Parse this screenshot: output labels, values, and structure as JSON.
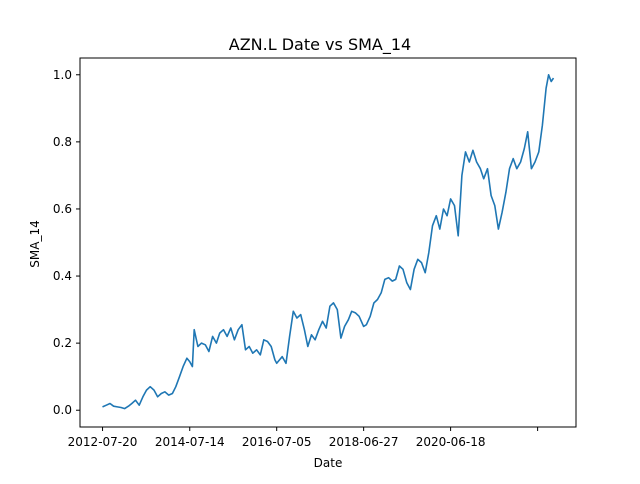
{
  "chart_data": {
    "type": "line",
    "title": "AZN.L Date vs SMA_14",
    "xlabel": "Date",
    "ylabel": "SMA_14",
    "x_tick_labels": [
      "2012-07-20",
      "2014-07-14",
      "2016-07-05",
      "2018-06-27",
      "2020-06-18",
      ""
    ],
    "y_tick_labels": [
      "0.0",
      "0.2",
      "0.4",
      "0.6",
      "0.8",
      "1.0"
    ],
    "ylim": [
      -0.05,
      1.05
    ],
    "grid": false,
    "line_color": "#1f77b4",
    "series": [
      {
        "points": [
          [
            "2012-07-20",
            0.01
          ],
          [
            "2012-08-20",
            0.015
          ],
          [
            "2012-09-20",
            0.02
          ],
          [
            "2012-10-20",
            0.012
          ],
          [
            "2012-11-20",
            0.01
          ],
          [
            "2012-12-20",
            0.008
          ],
          [
            "2013-01-20",
            0.005
          ],
          [
            "2013-02-20",
            0.012
          ],
          [
            "2013-03-20",
            0.02
          ],
          [
            "2013-04-20",
            0.03
          ],
          [
            "2013-05-20",
            0.015
          ],
          [
            "2013-06-20",
            0.04
          ],
          [
            "2013-07-20",
            0.06
          ],
          [
            "2013-08-20",
            0.07
          ],
          [
            "2013-09-20",
            0.06
          ],
          [
            "2013-10-20",
            0.04
          ],
          [
            "2013-11-20",
            0.05
          ],
          [
            "2013-12-20",
            0.055
          ],
          [
            "2014-01-20",
            0.045
          ],
          [
            "2014-02-20",
            0.05
          ],
          [
            "2014-03-20",
            0.07
          ],
          [
            "2014-04-20",
            0.1
          ],
          [
            "2014-05-20",
            0.13
          ],
          [
            "2014-06-20",
            0.155
          ],
          [
            "2014-07-14",
            0.145
          ],
          [
            "2014-08-05",
            0.13
          ],
          [
            "2014-08-20",
            0.24
          ],
          [
            "2014-09-20",
            0.19
          ],
          [
            "2014-10-20",
            0.2
          ],
          [
            "2014-11-20",
            0.195
          ],
          [
            "2014-12-20",
            0.175
          ],
          [
            "2015-01-20",
            0.22
          ],
          [
            "2015-02-20",
            0.2
          ],
          [
            "2015-03-20",
            0.23
          ],
          [
            "2015-04-20",
            0.24
          ],
          [
            "2015-05-20",
            0.22
          ],
          [
            "2015-06-20",
            0.245
          ],
          [
            "2015-07-20",
            0.21
          ],
          [
            "2015-08-20",
            0.24
          ],
          [
            "2015-09-20",
            0.255
          ],
          [
            "2015-10-20",
            0.18
          ],
          [
            "2015-11-20",
            0.19
          ],
          [
            "2015-12-20",
            0.17
          ],
          [
            "2016-01-20",
            0.18
          ],
          [
            "2016-02-20",
            0.165
          ],
          [
            "2016-03-20",
            0.21
          ],
          [
            "2016-04-20",
            0.205
          ],
          [
            "2016-05-20",
            0.19
          ],
          [
            "2016-06-20",
            0.15
          ],
          [
            "2016-07-05",
            0.14
          ],
          [
            "2016-08-20",
            0.16
          ],
          [
            "2016-09-20",
            0.14
          ],
          [
            "2016-10-20",
            0.22
          ],
          [
            "2016-11-20",
            0.295
          ],
          [
            "2016-12-20",
            0.275
          ],
          [
            "2017-01-20",
            0.285
          ],
          [
            "2017-02-20",
            0.24
          ],
          [
            "2017-03-20",
            0.19
          ],
          [
            "2017-04-20",
            0.225
          ],
          [
            "2017-05-20",
            0.21
          ],
          [
            "2017-06-20",
            0.24
          ],
          [
            "2017-07-20",
            0.265
          ],
          [
            "2017-08-20",
            0.245
          ],
          [
            "2017-09-20",
            0.31
          ],
          [
            "2017-10-20",
            0.32
          ],
          [
            "2017-11-20",
            0.3
          ],
          [
            "2017-12-20",
            0.215
          ],
          [
            "2018-01-20",
            0.25
          ],
          [
            "2018-02-20",
            0.27
          ],
          [
            "2018-03-20",
            0.295
          ],
          [
            "2018-04-20",
            0.29
          ],
          [
            "2018-05-20",
            0.28
          ],
          [
            "2018-06-27",
            0.25
          ],
          [
            "2018-07-20",
            0.255
          ],
          [
            "2018-08-20",
            0.28
          ],
          [
            "2018-09-20",
            0.32
          ],
          [
            "2018-10-20",
            0.33
          ],
          [
            "2018-11-20",
            0.35
          ],
          [
            "2018-12-20",
            0.39
          ],
          [
            "2019-01-20",
            0.395
          ],
          [
            "2019-02-20",
            0.385
          ],
          [
            "2019-03-20",
            0.39
          ],
          [
            "2019-04-20",
            0.43
          ],
          [
            "2019-05-20",
            0.42
          ],
          [
            "2019-06-20",
            0.38
          ],
          [
            "2019-07-20",
            0.36
          ],
          [
            "2019-08-20",
            0.42
          ],
          [
            "2019-09-20",
            0.45
          ],
          [
            "2019-10-20",
            0.44
          ],
          [
            "2019-11-20",
            0.41
          ],
          [
            "2019-12-20",
            0.47
          ],
          [
            "2020-01-20",
            0.55
          ],
          [
            "2020-02-20",
            0.58
          ],
          [
            "2020-03-20",
            0.54
          ],
          [
            "2020-04-20",
            0.6
          ],
          [
            "2020-05-20",
            0.58
          ],
          [
            "2020-06-18",
            0.63
          ],
          [
            "2020-07-20",
            0.61
          ],
          [
            "2020-08-20",
            0.52
          ],
          [
            "2020-09-20",
            0.7
          ],
          [
            "2020-10-20",
            0.77
          ],
          [
            "2020-11-20",
            0.74
          ],
          [
            "2020-12-20",
            0.775
          ],
          [
            "2021-01-20",
            0.74
          ],
          [
            "2021-02-20",
            0.72
          ],
          [
            "2021-03-20",
            0.69
          ],
          [
            "2021-04-20",
            0.72
          ],
          [
            "2021-05-20",
            0.64
          ],
          [
            "2021-06-20",
            0.61
          ],
          [
            "2021-07-20",
            0.54
          ],
          [
            "2021-08-20",
            0.59
          ],
          [
            "2021-09-20",
            0.65
          ],
          [
            "2021-10-20",
            0.72
          ],
          [
            "2021-11-20",
            0.75
          ],
          [
            "2021-12-20",
            0.72
          ],
          [
            "2022-01-20",
            0.74
          ],
          [
            "2022-02-20",
            0.78
          ],
          [
            "2022-03-20",
            0.83
          ],
          [
            "2022-04-20",
            0.72
          ],
          [
            "2022-05-20",
            0.74
          ],
          [
            "2022-06-20",
            0.77
          ],
          [
            "2022-07-20",
            0.85
          ],
          [
            "2022-08-20",
            0.96
          ],
          [
            "2022-09-10",
            1.0
          ],
          [
            "2022-10-01",
            0.98
          ],
          [
            "2022-10-20",
            0.99
          ]
        ]
      }
    ]
  }
}
